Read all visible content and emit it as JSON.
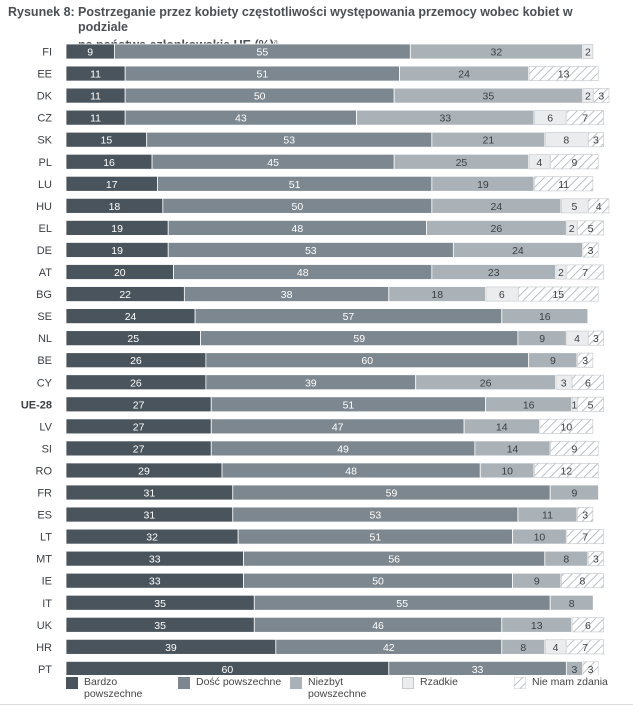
{
  "figure": {
    "label": "Rysunek 8:",
    "title_line1": "Postrzeganie przez kobiety częstotliwości występowania przemocy wobec kobiet w podziale",
    "title_line2": "na państwa członkowskie UE (%)",
    "title_note": "a"
  },
  "chart_data": {
    "type": "bar",
    "orientation": "horizontal",
    "stacked": true,
    "percent": true,
    "xlim": [
      0,
      100
    ],
    "title": "Postrzeganie przez kobiety częstotliwości występowania przemocy wobec kobiet w podziale na państwa członkowskie UE (%)",
    "legend_position": "bottom",
    "categories": [
      "FI",
      "EE",
      "DK",
      "CZ",
      "SK",
      "PL",
      "LU",
      "HU",
      "EL",
      "DE",
      "AT",
      "BG",
      "SE",
      "NL",
      "BE",
      "CY",
      "UE-28",
      "LV",
      "SI",
      "RO",
      "FR",
      "ES",
      "LT",
      "MT",
      "IE",
      "IT",
      "UK",
      "HR",
      "PT"
    ],
    "highlight_category": "UE-28",
    "series": [
      {
        "name": "Bardzo powszechne",
        "color": "#4a545c",
        "values": [
          9,
          11,
          11,
          11,
          15,
          16,
          17,
          18,
          19,
          19,
          20,
          22,
          24,
          25,
          26,
          26,
          27,
          27,
          27,
          29,
          31,
          31,
          32,
          33,
          33,
          35,
          35,
          39,
          60
        ]
      },
      {
        "name": "Dość powszechne",
        "color": "#7c878f",
        "values": [
          55,
          51,
          50,
          43,
          53,
          45,
          51,
          50,
          48,
          53,
          48,
          38,
          57,
          59,
          60,
          39,
          51,
          47,
          49,
          48,
          59,
          53,
          51,
          56,
          50,
          55,
          46,
          42,
          33
        ]
      },
      {
        "name": "Niezbyt powszechne",
        "color": "#aab2b8",
        "values": [
          32,
          24,
          35,
          33,
          21,
          25,
          19,
          24,
          26,
          24,
          23,
          18,
          16,
          9,
          9,
          26,
          16,
          14,
          14,
          10,
          9,
          11,
          10,
          8,
          9,
          8,
          13,
          8,
          3
        ]
      },
      {
        "name": "Rzadkie",
        "color": "#ebeced",
        "values": [
          2,
          0,
          2,
          6,
          8,
          4,
          0,
          5,
          2,
          0,
          2,
          6,
          0,
          4,
          0,
          3,
          1,
          0,
          0,
          0,
          0,
          0,
          0,
          0,
          0,
          0,
          0,
          4,
          0
        ]
      },
      {
        "name": "Nie mam zdania",
        "color": "hatched",
        "values": [
          0,
          13,
          3,
          7,
          3,
          9,
          11,
          4,
          5,
          3,
          7,
          15,
          0,
          3,
          3,
          6,
          5,
          10,
          9,
          12,
          0,
          3,
          7,
          3,
          8,
          0,
          6,
          7,
          3
        ]
      }
    ]
  },
  "legend": [
    {
      "label": "Bardzo powszechne",
      "line1": "Bardzo",
      "line2": "powszechne"
    },
    {
      "label": "Dość powszechne",
      "line1": "Dość powszechne",
      "line2": ""
    },
    {
      "label": "Niezbyt powszechne",
      "line1": "Niezbyt",
      "line2": "powszechne"
    },
    {
      "label": "Rzadkie",
      "line1": "Rzadkie",
      "line2": ""
    },
    {
      "label": "Nie mam zdania",
      "line1": "Nie mam zdania",
      "line2": ""
    }
  ]
}
